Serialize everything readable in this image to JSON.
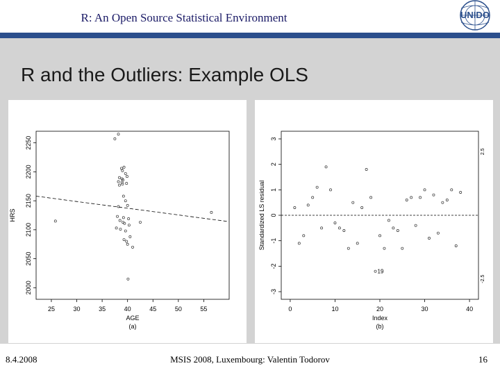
{
  "header": {
    "title": "R: An Open Source Statistical Environment",
    "logo_text": "UNIDO"
  },
  "slide": {
    "title": "R and the Outliers: Example OLS"
  },
  "footer": {
    "date": "8.4.2008",
    "center": "MSIS 2008, Luxembourg: Valentin Todorov",
    "page": "16"
  },
  "colors": {
    "band": "#2b4f8c",
    "content_bg": "#d3d3d3",
    "title_text": "#1a1a66"
  },
  "chart_data": [
    {
      "type": "scatter",
      "xlabel": "AGE",
      "ylabel": "HRS",
      "caption": "(a)",
      "x_ticks": [
        25,
        30,
        35,
        40,
        45,
        50,
        55
      ],
      "y_ticks": [
        2000,
        2050,
        2100,
        2150,
        2200,
        2250
      ],
      "xlim": [
        22,
        60
      ],
      "ylim": [
        1980,
        2270
      ],
      "fit_line": {
        "x": [
          22,
          60
        ],
        "y": [
          2158,
          2114
        ]
      },
      "points": {
        "x": [
          37.5,
          38.2,
          39.3,
          38.8,
          39.0,
          39.6,
          39.9,
          38.4,
          38.9,
          39.1,
          38.2,
          38.9,
          39.8,
          39.0,
          38.4,
          39.2,
          39.6,
          40.0,
          38.2,
          38.0,
          39.2,
          40.2,
          38.5,
          39.1,
          39.4,
          40.3,
          37.8,
          38.6,
          39.6,
          40.5,
          39.3,
          39.8,
          40.0,
          41.0,
          25.8,
          42.5,
          56.5,
          40.1
        ],
        "y": [
          2257,
          2265,
          2208,
          2206,
          2202,
          2197,
          2192,
          2190,
          2188,
          2186,
          2183,
          2182,
          2180,
          2179,
          2177,
          2158,
          2150,
          2142,
          2140,
          2123,
          2121,
          2119,
          2116,
          2113,
          2111,
          2108,
          2103,
          2101,
          2098,
          2088,
          2083,
          2080,
          2075,
          2070,
          2115,
          2113,
          2130,
          2015
        ]
      }
    },
    {
      "type": "scatter",
      "xlabel": "Index",
      "ylabel": "Standardized LS residual",
      "caption": "(b)",
      "x_ticks": [
        0,
        10,
        20,
        30,
        40
      ],
      "y_ticks": [
        -3,
        -2,
        -1,
        0,
        1,
        2,
        3
      ],
      "xlim": [
        -2,
        42
      ],
      "ylim": [
        -3.3,
        3.3
      ],
      "right_ticks": [
        "2.5",
        "-2.5"
      ],
      "zero_line": 0,
      "annotation": "19",
      "points": {
        "x": [
          1,
          2,
          3,
          4,
          5,
          6,
          7,
          8,
          9,
          10,
          11,
          12,
          13,
          14,
          15,
          16,
          17,
          18,
          19,
          20,
          21,
          22,
          23,
          24,
          25,
          26,
          27,
          28,
          29,
          30,
          31,
          32,
          33,
          34,
          35,
          36,
          37,
          38
        ],
        "y": [
          0.3,
          -1.1,
          -0.8,
          0.4,
          0.7,
          1.1,
          -0.5,
          1.9,
          1.0,
          -0.3,
          -0.5,
          -0.6,
          -1.3,
          0.5,
          -1.1,
          0.3,
          1.8,
          0.7,
          -2.2,
          -0.8,
          -1.3,
          -0.2,
          -0.5,
          -0.6,
          -1.3,
          0.6,
          0.7,
          -0.4,
          0.7,
          1.0,
          -0.9,
          0.8,
          -0.7,
          0.5,
          0.6,
          1.0,
          -1.2,
          0.9
        ]
      }
    }
  ]
}
